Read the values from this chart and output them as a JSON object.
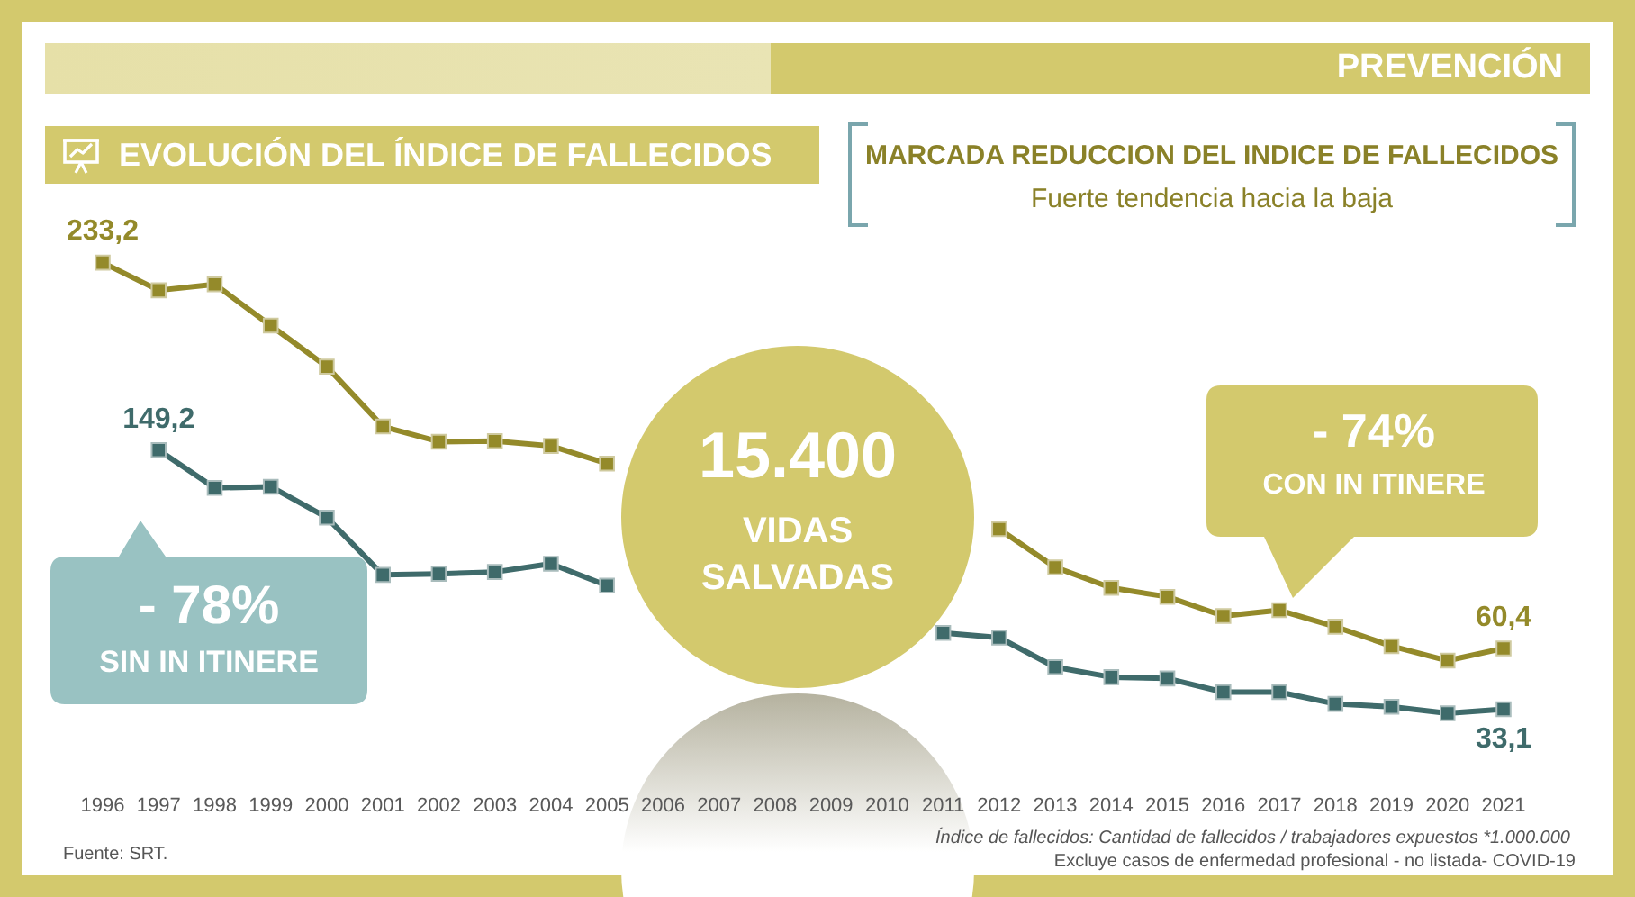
{
  "chart_data": {
    "type": "line",
    "title": "EVOLUCIÓN DEL ÍNDICE DE FALLECIDOS",
    "categories": [
      "1996",
      "1997",
      "1998",
      "1999",
      "2000",
      "2001",
      "2002",
      "2003",
      "2004",
      "2005",
      "2006",
      "2007",
      "2008",
      "2009",
      "2010",
      "2011",
      "2012",
      "2013",
      "2014",
      "2015",
      "2016",
      "2017",
      "2018",
      "2019",
      "2020",
      "2021"
    ],
    "series": [
      {
        "color": "#948a2a",
        "values": [
          233.2,
          220.8,
          223.5,
          205.0,
          186.6,
          159.8,
          153.0,
          153.3,
          151.1,
          143.2,
          null,
          null,
          null,
          null,
          null,
          null,
          113.8,
          96.7,
          87.5,
          83.5,
          74.9,
          77.5,
          70.1,
          61.4,
          54.9,
          60.4
        ],
        "value_labels": [
          "233,2",
          null,
          null,
          null,
          null,
          null,
          null,
          null,
          null,
          null,
          null,
          null,
          null,
          null,
          null,
          null,
          null,
          null,
          null,
          null,
          null,
          null,
          null,
          null,
          null,
          "60,4"
        ]
      },
      {
        "color": "#3f6b6b",
        "values": [
          null,
          149.2,
          132.3,
          132.8,
          119.0,
          93.3,
          93.8,
          94.6,
          98.3,
          88.5,
          null,
          null,
          null,
          null,
          null,
          67.3,
          65.2,
          52.0,
          47.5,
          46.9,
          40.8,
          40.8,
          35.5,
          34.2,
          31.3,
          33.1
        ],
        "value_labels": [
          null,
          "149,2",
          null,
          null,
          null,
          null,
          null,
          null,
          null,
          null,
          null,
          null,
          null,
          null,
          null,
          null,
          null,
          null,
          null,
          null,
          null,
          null,
          null,
          null,
          null,
          "33,1"
        ]
      }
    ],
    "tick_labels": "x",
    "marker": "square",
    "line_style": "solid",
    "annotations": [
      "PREVENCIÓN",
      "MARCADA REDUCCION DEL INDICE DE FALLECIDOS",
      "Fuerte tendencia hacia la baja",
      "15.400",
      "VIDAS SALVADAS",
      "- 78%",
      "- 74%",
      "Fuente: SRT.",
      "Índice de fallecidos: Cantidad de fallecidos / trabajadores expuestos *1.000.000",
      "Excluye casos de enfermedad profesional - no listada- COVID-19",
      "SIN IN ITINERE",
      "CON IN ITINERE"
    ]
  }
}
